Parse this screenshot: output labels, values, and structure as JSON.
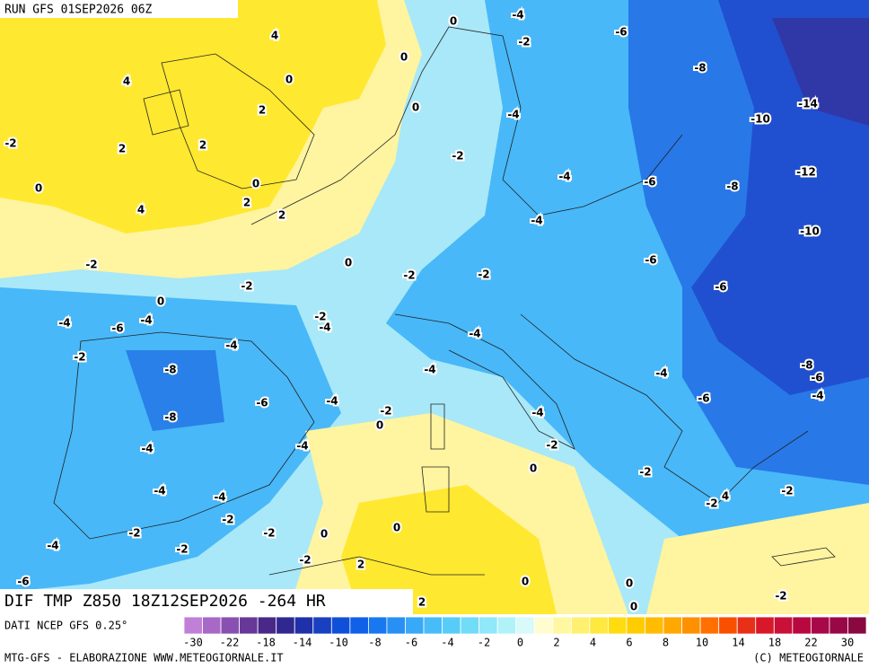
{
  "header": {
    "run": "RUN GFS 01SEP2026 06Z",
    "title": "DIF TMP Z850 18Z12SEP2026 -264 HR"
  },
  "footer": {
    "source": "DATI NCEP GFS 0.25°",
    "credit": "MTG-GFS - ELABORAZIONE WWW.METEOGIORNALE.IT",
    "copyright": "(C) METEOGIORNALE"
  },
  "colorbar": {
    "colors": [
      "#c080d8",
      "#a868c8",
      "#8850b0",
      "#683898",
      "#482888",
      "#302890",
      "#2030a8",
      "#1840c0",
      "#1050d8",
      "#1060e8",
      "#1878f0",
      "#2890f4",
      "#38a8f8",
      "#48bcf8",
      "#58ccf8",
      "#70dcf8",
      "#90e8f8",
      "#b0f2f8",
      "#d8fafa",
      "#fffcd0",
      "#fff8a0",
      "#fff070",
      "#ffe840",
      "#ffdc10",
      "#ffcc00",
      "#ffbc00",
      "#ffa800",
      "#ff9000",
      "#ff7000",
      "#f85000",
      "#e83018",
      "#d81828",
      "#c81038",
      "#b80840",
      "#a80848",
      "#980848",
      "#880840"
    ],
    "ticks": [
      -30,
      -22,
      -18,
      -14,
      -10,
      -8,
      -6,
      -4,
      -2,
      0,
      2,
      4,
      6,
      8,
      10,
      14,
      18,
      22,
      30
    ]
  },
  "contour_labels": [
    "4",
    "0",
    "-4",
    "-2",
    "-6",
    "0",
    "4",
    "0",
    "-8",
    "2",
    "0",
    "-4",
    "-10",
    "-14",
    "-2",
    "2",
    "2",
    "-2",
    "-12",
    "0",
    "0",
    "-4",
    "-6",
    "-8",
    "2",
    "4",
    "2",
    "-4",
    "-10",
    "0",
    "-2",
    "-2",
    "-2",
    "-6",
    "-2",
    "0",
    "-6",
    "-4",
    "-4",
    "-2",
    "-4",
    "-6",
    "-4",
    "-4",
    "-2",
    "-8",
    "-8",
    "-4",
    "-6",
    "-4",
    "-6",
    "-4",
    "-4",
    "-6",
    "-2",
    "-8",
    "0",
    "-4",
    "-4",
    "-4",
    "-2",
    "0",
    "-2",
    "-4",
    "-4",
    "-2",
    "-2",
    "4",
    "-2",
    "-2",
    "-2",
    "0",
    "0",
    "-4",
    "-2",
    "-2",
    "2",
    "-6",
    "0",
    "0",
    "0",
    "-2",
    "2"
  ]
}
